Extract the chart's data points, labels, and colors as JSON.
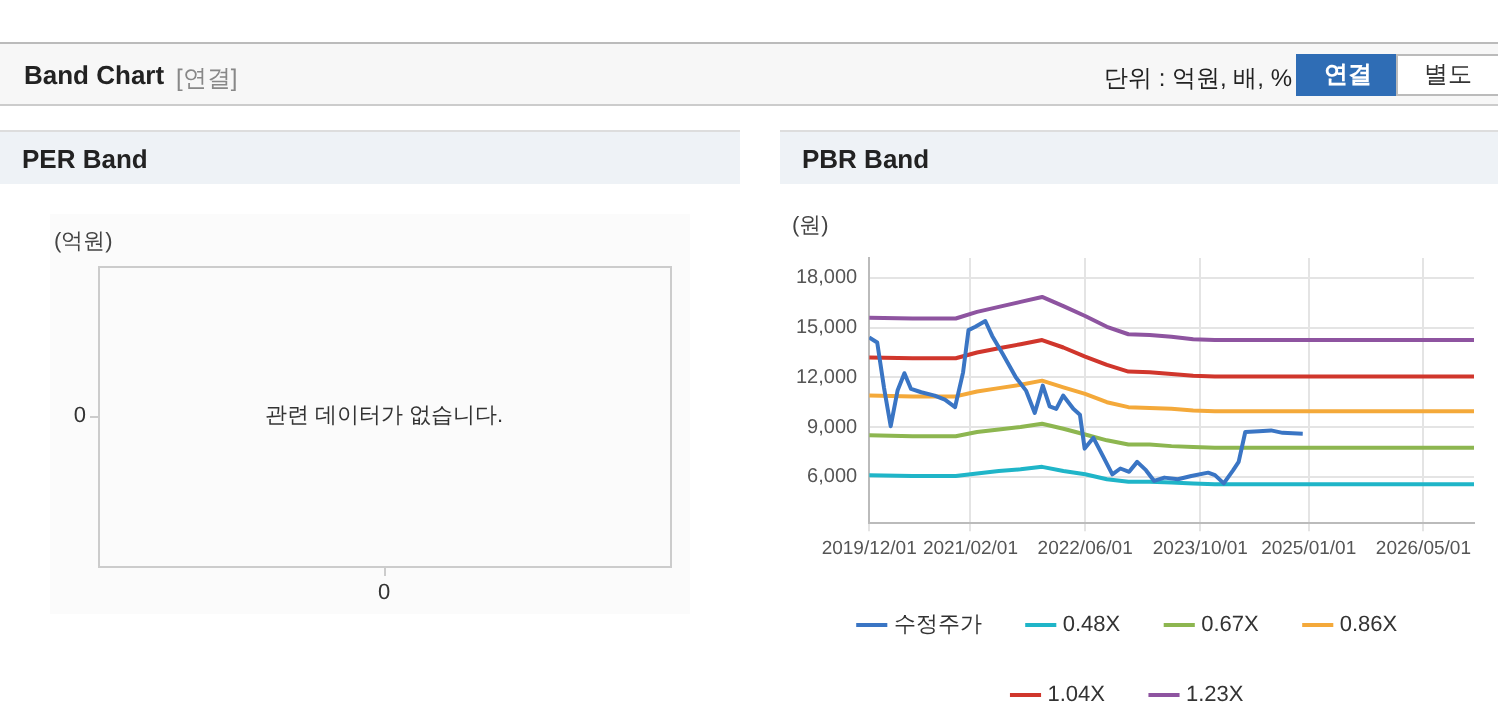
{
  "chart_data": [
    {
      "type": "other",
      "title": "Band Chart",
      "subtitle": "[연결]",
      "annotations": [
        "단위 : 억원, 배, %",
        "연결",
        "별도"
      ]
    },
    {
      "type": "other",
      "title": "PER Band",
      "ylabel": "(억원)",
      "annotations": [
        "0",
        "0",
        "관련 데이터가 없습니다."
      ]
    },
    {
      "type": "line",
      "title": "PBR Band",
      "ylabel": "(원)",
      "xlim": [
        "2019-12-01",
        "2026-12-01"
      ],
      "xticks": [
        {
          "value": "2019-12-01",
          "label": "2019/12/01"
        },
        {
          "value": "2021-02-01",
          "label": "2021/02/01"
        },
        {
          "value": "2022-06-01",
          "label": "2022/06/01"
        },
        {
          "value": "2023-10-01",
          "label": "2023/10/01"
        },
        {
          "value": "2025-01-01",
          "label": "2025/01/01"
        },
        {
          "value": "2026-05-01",
          "label": "2026/05/01"
        }
      ],
      "ylim": [
        3200,
        19200
      ],
      "yticks": [
        {
          "value": 6000,
          "label": "6,000"
        },
        {
          "value": 9000,
          "label": "9,000"
        },
        {
          "value": 12000,
          "label": "12,000"
        },
        {
          "value": 15000,
          "label": "15,000"
        },
        {
          "value": 18000,
          "label": "18,000"
        }
      ],
      "grid": true,
      "legend": "bottom",
      "marker": "none",
      "x": [
        "2019-12",
        "2020-06",
        "2020-12",
        "2021-03",
        "2021-06",
        "2021-09",
        "2021-12",
        "2022-03",
        "2022-06",
        "2022-09",
        "2022-12",
        "2023-03",
        "2023-06",
        "2023-09",
        "2023-12",
        "2024-06",
        "2025-06",
        "2026-06",
        "2026-12"
      ],
      "series": [
        {
          "name": "수정주가",
          "color": "#3a75c4",
          "x": [
            "2019-12-01",
            "2020-01-04",
            "2020-02-02",
            "2020-03-01",
            "2020-03-30",
            "2020-04-28",
            "2020-05-26",
            "2020-07-08",
            "2020-09-03",
            "2020-10-16",
            "2020-11-28",
            "2021-01-01",
            "2021-01-24",
            "2021-02-22",
            "2021-04-05",
            "2021-05-04",
            "2021-06-16",
            "2021-08-12",
            "2021-09-24",
            "2021-10-31",
            "2021-12-04",
            "2022-01-02",
            "2022-01-30",
            "2022-02-28",
            "2022-04-12",
            "2022-05-10",
            "2022-05-30",
            "2022-07-06",
            "2022-08-17",
            "2022-09-24",
            "2022-10-28",
            "2022-12-04",
            "2023-01-07",
            "2023-02-13",
            "2023-03-20",
            "2023-05-02",
            "2023-06-28",
            "2023-08-24",
            "2023-11-03",
            "2023-12-02",
            "2024-01-08",
            "2024-02-17",
            "2024-03-11",
            "2024-04-08",
            "2024-06-05",
            "2024-07-26",
            "2024-09-13",
            "2024-12-07"
          ],
          "values": [
            14400,
            14100,
            11350,
            9050,
            11200,
            12250,
            11300,
            11100,
            10900,
            10650,
            10200,
            12300,
            14850,
            15050,
            15400,
            14500,
            13450,
            12000,
            11200,
            9850,
            11500,
            10250,
            10100,
            10900,
            10100,
            9750,
            7700,
            8350,
            7200,
            6150,
            6500,
            6300,
            6900,
            6400,
            5750,
            5950,
            5850,
            6050,
            6250,
            6100,
            5600,
            6400,
            6900,
            8700,
            8750,
            8800,
            8650,
            8600
          ]
        },
        {
          "name": "0.48X",
          "color": "#1fb5c8",
          "values": [
            6100,
            6050,
            6050,
            6200,
            6350,
            6450,
            6600,
            6350,
            6150,
            5850,
            5700,
            5700,
            5650,
            5600,
            5550,
            5550,
            5550,
            5550,
            5550
          ]
        },
        {
          "name": "0.67X",
          "color": "#8db650",
          "values": [
            8500,
            8450,
            8450,
            8700,
            8850,
            9000,
            9200,
            8900,
            8550,
            8200,
            7950,
            7950,
            7850,
            7800,
            7750,
            7750,
            7750,
            7750,
            7750
          ]
        },
        {
          "name": "0.86X",
          "color": "#f4a93a",
          "values": [
            10900,
            10850,
            10850,
            11150,
            11350,
            11550,
            11800,
            11400,
            11000,
            10500,
            10200,
            10150,
            10100,
            10000,
            9950,
            9950,
            9950,
            9950,
            9950
          ]
        },
        {
          "name": "1.04X",
          "color": "#d0362c",
          "values": [
            13200,
            13150,
            13150,
            13500,
            13750,
            14000,
            14250,
            13800,
            13250,
            12750,
            12350,
            12300,
            12200,
            12100,
            12050,
            12050,
            12050,
            12050,
            12050
          ]
        },
        {
          "name": "1.23X",
          "color": "#8e54a0",
          "values": [
            15600,
            15550,
            15550,
            15950,
            16250,
            16550,
            16850,
            16300,
            15700,
            15050,
            14600,
            14550,
            14450,
            14300,
            14250,
            14250,
            14250,
            14250,
            14250
          ]
        }
      ]
    }
  ]
}
